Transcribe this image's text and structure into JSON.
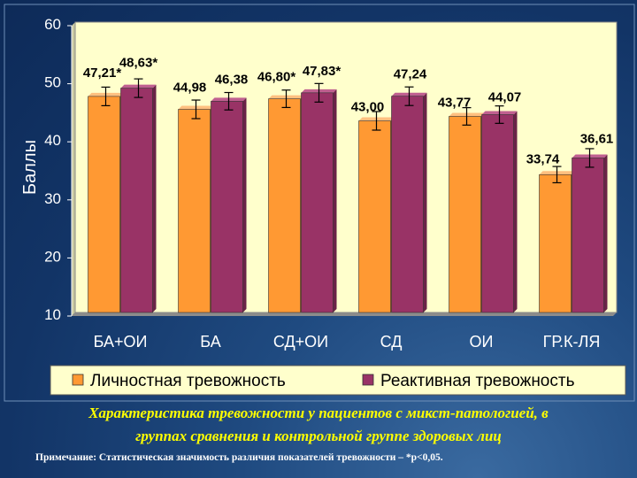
{
  "chart_data": {
    "type": "bar",
    "categories": [
      "БА+ОИ",
      "БА",
      "СД+ОИ",
      "СД",
      "ОИ",
      "ГР.К-ЛЯ"
    ],
    "series": [
      {
        "name": "Личностная тревожность",
        "color": "#FF9933",
        "values": [
          47.21,
          44.98,
          46.8,
          43.0,
          43.77,
          33.74
        ],
        "errors": [
          1.6,
          1.6,
          1.5,
          1.6,
          1.5,
          1.4
        ],
        "labels": [
          "47,21*",
          "44,98",
          "46,80*",
          "43,00",
          "43,77",
          "33,74"
        ]
      },
      {
        "name": "Реактивная тревожность",
        "color": "#993366",
        "values": [
          48.63,
          46.38,
          47.83,
          47.24,
          44.07,
          36.61
        ],
        "errors": [
          1.6,
          1.5,
          1.6,
          1.6,
          1.5,
          1.6
        ],
        "labels": [
          "48,63*",
          "46,38",
          "47,83*",
          "47,24",
          "44,07",
          "36,61"
        ]
      }
    ],
    "ylabel": "Баллы",
    "ylim": [
      10,
      60
    ],
    "yticks": [
      "10",
      "20",
      "30",
      "40",
      "50",
      "60"
    ],
    "yticks_values": [
      10,
      20,
      30,
      40,
      50,
      60
    ],
    "legend_position": "bottom",
    "plot_background": "#FFFFCC",
    "grid": false
  },
  "caption_line1": "Характеристика тревожности у пациентов с микст-патологией, в",
  "caption_line2": "группах сравнения и контрольной группе здоровых лиц",
  "note": "Примечание: Статистическая значимость различия показателей тревожности – *р<0,05."
}
